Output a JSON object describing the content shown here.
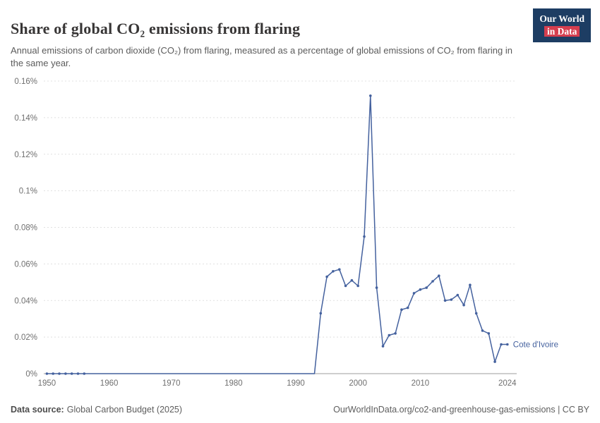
{
  "header": {
    "title": "Share of global CO₂ emissions from flaring",
    "subtitle": "Annual emissions of carbon dioxide (CO₂) from flaring, measured as a percentage of global emissions of CO₂ from flaring in the same year.",
    "logo_line1": "Our World",
    "logo_line2": "in Data"
  },
  "colors": {
    "accent": "#44619e",
    "logo_navy": "#1d3d63",
    "logo_red": "#d53e4f",
    "gridline": "#e0e0e0",
    "zero_line": "#9e9e9e",
    "tick_label": "#6f6f6f"
  },
  "chart_data": {
    "type": "line",
    "title": "Share of global CO₂ emissions from flaring",
    "xlabel": "",
    "ylabel": "",
    "grid": true,
    "legend_position": "end-of-line",
    "ylim": [
      0,
      0.16
    ],
    "yticks": [
      0,
      0.02,
      0.04,
      0.06,
      0.08,
      0.1,
      0.12,
      0.14,
      0.16
    ],
    "ytick_labels": [
      "0%",
      "0.02%",
      "0.04%",
      "0.06%",
      "0.08%",
      "0.1%",
      "0.12%",
      "0.14%",
      "0.16%"
    ],
    "xticks": [
      1950,
      1960,
      1970,
      1980,
      1990,
      2000,
      2010,
      2024
    ],
    "series": [
      {
        "name": "Cote d'Ivoire",
        "color": "#44619e",
        "markers_on_zero_until": 1956,
        "x": [
          1950,
          1951,
          1952,
          1953,
          1954,
          1955,
          1956,
          1957,
          1958,
          1959,
          1960,
          1961,
          1962,
          1963,
          1964,
          1965,
          1966,
          1967,
          1968,
          1969,
          1970,
          1971,
          1972,
          1973,
          1974,
          1975,
          1976,
          1977,
          1978,
          1979,
          1980,
          1981,
          1982,
          1983,
          1984,
          1985,
          1986,
          1987,
          1988,
          1989,
          1990,
          1991,
          1992,
          1993,
          1994,
          1995,
          1996,
          1997,
          1998,
          1999,
          2000,
          2001,
          2002,
          2003,
          2004,
          2005,
          2006,
          2007,
          2008,
          2009,
          2010,
          2011,
          2012,
          2013,
          2014,
          2015,
          2016,
          2017,
          2018,
          2019,
          2020,
          2021,
          2022,
          2023,
          2024
        ],
        "values": [
          0,
          0,
          0,
          0,
          0,
          0,
          0,
          0,
          0,
          0,
          0,
          0,
          0,
          0,
          0,
          0,
          0,
          0,
          0,
          0,
          0,
          0,
          0,
          0,
          0,
          0,
          0,
          0,
          0,
          0,
          0,
          0,
          0,
          0,
          0,
          0,
          0,
          0,
          0,
          0,
          0,
          0,
          0,
          0,
          0.033,
          0.053,
          0.056,
          0.057,
          0.048,
          0.051,
          0.048,
          0.075,
          0.152,
          0.047,
          0.015,
          0.021,
          0.022,
          0.035,
          0.036,
          0.044,
          0.046,
          0.047,
          0.0505,
          0.0535,
          0.04,
          0.0405,
          0.043,
          0.0375,
          0.0485,
          0.033,
          0.0235,
          0.022,
          0.0065,
          0.016,
          0.016
        ]
      }
    ]
  },
  "footer": {
    "source_label": "Data source:",
    "source_text": "Global Carbon Budget (2025)",
    "right_text": "OurWorldInData.org/co2-and-greenhouse-gas-emissions | CC BY"
  }
}
